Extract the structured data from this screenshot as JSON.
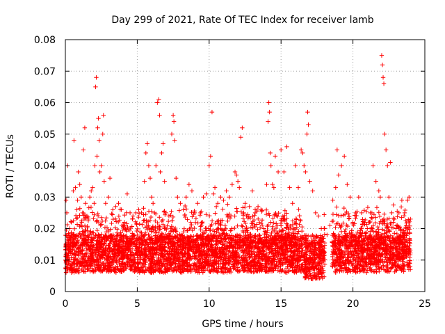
{
  "chart_data": {
    "type": "scatter",
    "title": "Day 299 of 2021, Rate Of TEC Index for receiver lamb",
    "xlabel": "GPS time / hours",
    "ylabel": "ROTI / TECUs",
    "xlim": [
      0,
      25
    ],
    "ylim": [
      0,
      0.08
    ],
    "xticks": [
      "0",
      "5",
      "10",
      "15",
      "20",
      "25"
    ],
    "yticks": [
      "0",
      "0.01",
      "0.02",
      "0.03",
      "0.04",
      "0.05",
      "0.06",
      "0.07",
      "0.08"
    ],
    "grid": true,
    "marker": "+",
    "color": "#ff0000",
    "series": [
      {
        "x": [
          0.05,
          0.1,
          0.15,
          0.3,
          0.45,
          0.55,
          0.6,
          0.7,
          0.8,
          0.85,
          0.9,
          1.0,
          1.1,
          1.2,
          1.25,
          1.35,
          1.4,
          1.5,
          1.6,
          1.7,
          1.8,
          1.9,
          2.0,
          2.05,
          2.1,
          2.15,
          2.2,
          2.25,
          2.3,
          2.35,
          2.4,
          2.5,
          2.6,
          2.65,
          2.7,
          2.8,
          3.0,
          3.1,
          3.3,
          3.5,
          3.7,
          3.9,
          4.1,
          4.3,
          4.5,
          4.7,
          4.9,
          5.1,
          5.3,
          5.5,
          5.6,
          5.7,
          5.8,
          5.9,
          6.0,
          6.1,
          6.2,
          6.3,
          6.4,
          6.5,
          6.55,
          6.6,
          6.7,
          6.8,
          6.9,
          7.0,
          7.2,
          7.4,
          7.5,
          7.55,
          7.6,
          7.7,
          7.8,
          8.0,
          8.2,
          8.4,
          8.6,
          8.8,
          9.0,
          9.2,
          9.4,
          9.6,
          9.8,
          10.0,
          10.1,
          10.2,
          10.3,
          10.4,
          10.5,
          10.6,
          10.8,
          11.0,
          11.2,
          11.4,
          11.6,
          11.8,
          11.9,
          12.0,
          12.1,
          12.2,
          12.3,
          12.4,
          12.5,
          12.6,
          12.8,
          13.0,
          13.2,
          13.4,
          13.6,
          13.8,
          14.0,
          14.1,
          14.15,
          14.2,
          14.25,
          14.3,
          14.4,
          14.5,
          14.6,
          14.8,
          15.0,
          15.2,
          15.4,
          15.6,
          15.8,
          16.0,
          16.2,
          16.4,
          16.5,
          16.6,
          16.7,
          16.8,
          16.85,
          16.9,
          17.0,
          17.2,
          17.4,
          17.6,
          17.8,
          18.0,
          18.2,
          18.4,
          18.6,
          18.8,
          18.9,
          19.0,
          19.2,
          19.4,
          19.6,
          19.8,
          20.0,
          20.2,
          20.4,
          20.6,
          20.8,
          21.0,
          21.2,
          21.4,
          21.6,
          21.8,
          21.9,
          22.0,
          22.05,
          22.1,
          22.15,
          22.2,
          22.3,
          22.4,
          22.5,
          22.6,
          22.7,
          22.8,
          23.0,
          23.2,
          23.4,
          23.6,
          23.8,
          23.9,
          24.0
        ],
        "y": [
          0.029,
          0.025,
          0.04,
          0.02,
          0.018,
          0.032,
          0.048,
          0.033,
          0.026,
          0.029,
          0.038,
          0.034,
          0.03,
          0.025,
          0.045,
          0.052,
          0.028,
          0.024,
          0.023,
          0.03,
          0.032,
          0.033,
          0.028,
          0.04,
          0.065,
          0.068,
          0.043,
          0.052,
          0.055,
          0.048,
          0.038,
          0.04,
          0.05,
          0.056,
          0.035,
          0.028,
          0.03,
          0.036,
          0.026,
          0.027,
          0.028,
          0.026,
          0.022,
          0.031,
          0.025,
          0.024,
          0.025,
          0.026,
          0.025,
          0.035,
          0.044,
          0.047,
          0.04,
          0.036,
          0.03,
          0.028,
          0.025,
          0.04,
          0.06,
          0.061,
          0.056,
          0.038,
          0.044,
          0.047,
          0.035,
          0.025,
          0.024,
          0.05,
          0.056,
          0.054,
          0.048,
          0.036,
          0.03,
          0.028,
          0.026,
          0.03,
          0.034,
          0.032,
          0.025,
          0.028,
          0.025,
          0.03,
          0.031,
          0.04,
          0.043,
          0.057,
          0.031,
          0.033,
          0.027,
          0.028,
          0.03,
          0.029,
          0.032,
          0.03,
          0.034,
          0.038,
          0.037,
          0.035,
          0.033,
          0.049,
          0.052,
          0.025,
          0.028,
          0.02,
          0.027,
          0.032,
          0.025,
          0.027,
          0.026,
          0.02,
          0.034,
          0.054,
          0.06,
          0.057,
          0.044,
          0.04,
          0.034,
          0.033,
          0.043,
          0.038,
          0.045,
          0.038,
          0.046,
          0.033,
          0.028,
          0.04,
          0.033,
          0.045,
          0.044,
          0.04,
          0.038,
          0.05,
          0.057,
          0.053,
          0.035,
          0.032,
          0.025,
          0.024,
          0.02,
          0.02,
          0.018,
          0.021,
          0.029,
          0.033,
          0.045,
          0.037,
          0.04,
          0.043,
          0.034,
          0.03,
          0.022,
          0.025,
          0.03,
          0.025,
          0.022,
          0.02,
          0.025,
          0.04,
          0.035,
          0.032,
          0.03,
          0.075,
          0.072,
          0.068,
          0.066,
          0.05,
          0.045,
          0.04,
          0.03,
          0.041,
          0.025,
          0.022,
          0.02,
          0.025,
          0.029,
          0.025,
          0.029,
          0.03,
          0.023
        ]
      }
    ]
  }
}
